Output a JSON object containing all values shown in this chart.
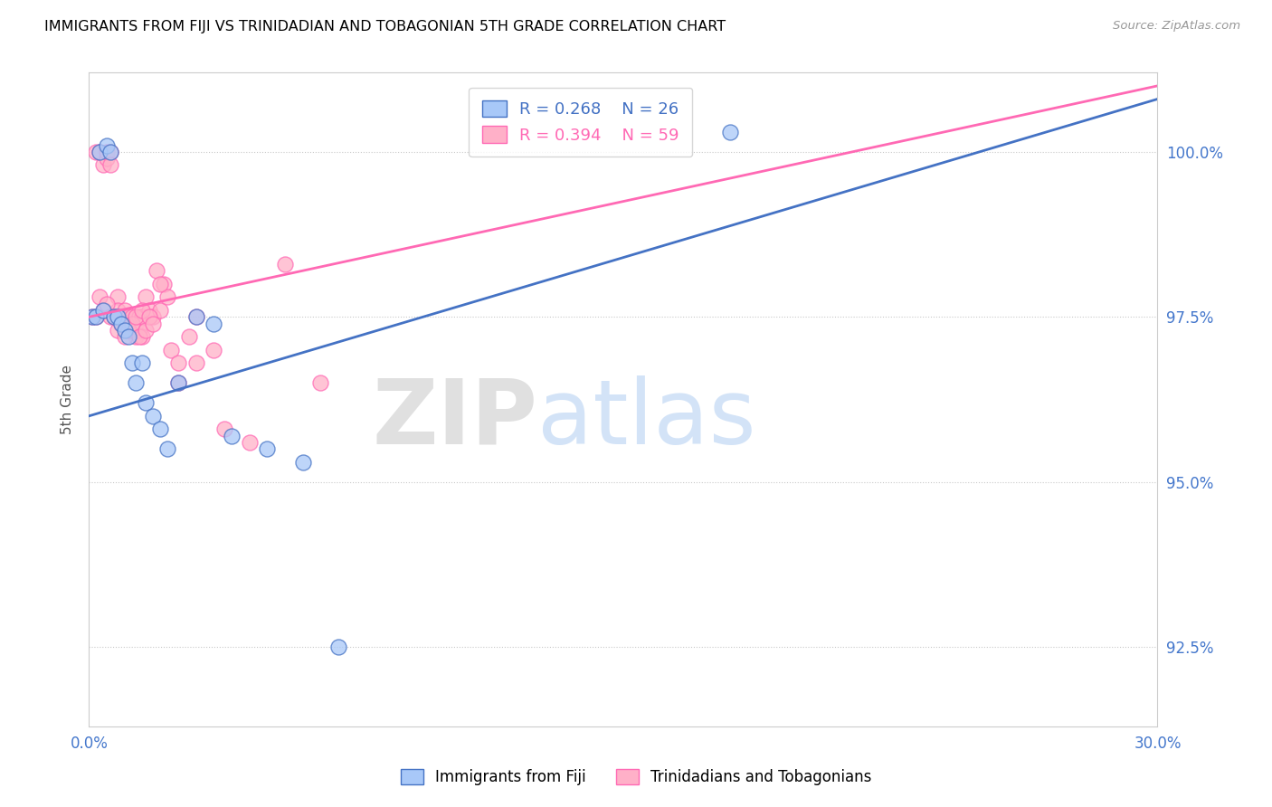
{
  "title": "IMMIGRANTS FROM FIJI VS TRINIDADIAN AND TOBAGONIAN 5TH GRADE CORRELATION CHART",
  "source": "Source: ZipAtlas.com",
  "ylabel": "5th Grade",
  "ylabel_right_ticks": [
    100.0,
    97.5,
    95.0,
    92.5
  ],
  "ylabel_right_labels": [
    "100.0%",
    "97.5%",
    "95.0%",
    "92.5%"
  ],
  "xmin": 0.0,
  "xmax": 30.0,
  "ymin": 91.3,
  "ymax": 101.2,
  "fiji_R": 0.268,
  "fiji_N": 26,
  "tt_R": 0.394,
  "tt_N": 59,
  "fiji_color": "#A8C8F8",
  "tt_color": "#FFB0C8",
  "fiji_line_color": "#4472C4",
  "tt_line_color": "#FF69B4",
  "fiji_label": "Immigrants from Fiji",
  "tt_label": "Trinidadians and Tobagonians",
  "watermark_zip": "ZIP",
  "watermark_atlas": "atlas",
  "fiji_x": [
    0.1,
    0.2,
    0.3,
    0.4,
    0.5,
    0.6,
    0.7,
    0.8,
    0.9,
    1.0,
    1.1,
    1.2,
    1.3,
    1.5,
    1.6,
    1.8,
    2.0,
    2.2,
    2.5,
    3.0,
    3.5,
    4.0,
    5.0,
    6.0,
    7.0,
    18.0
  ],
  "fiji_y": [
    97.5,
    97.5,
    100.0,
    97.6,
    100.1,
    100.0,
    97.5,
    97.5,
    97.4,
    97.3,
    97.2,
    96.8,
    96.5,
    96.8,
    96.2,
    96.0,
    95.8,
    95.5,
    96.5,
    97.5,
    97.4,
    95.7,
    95.5,
    95.3,
    92.5,
    100.3
  ],
  "tt_x": [
    0.1,
    0.2,
    0.3,
    0.4,
    0.5,
    0.5,
    0.6,
    0.6,
    0.7,
    0.8,
    0.8,
    0.9,
    1.0,
    1.0,
    1.1,
    1.2,
    1.2,
    1.3,
    1.3,
    1.4,
    1.4,
    1.5,
    1.5,
    1.6,
    1.7,
    1.8,
    1.9,
    2.0,
    2.1,
    2.2,
    2.3,
    2.5,
    2.8,
    3.0,
    3.5,
    3.8,
    4.5,
    5.5,
    6.5,
    0.2,
    0.3,
    0.4,
    0.5,
    0.6,
    0.7,
    0.8,
    0.9,
    1.0,
    1.1,
    1.2,
    1.3,
    1.4,
    1.5,
    1.6,
    1.7,
    1.8,
    2.0,
    2.5,
    3.0
  ],
  "tt_y": [
    97.5,
    100.0,
    100.0,
    99.8,
    99.9,
    100.0,
    100.0,
    99.8,
    97.5,
    97.8,
    97.6,
    97.5,
    97.4,
    97.6,
    97.5,
    97.3,
    97.5,
    97.4,
    97.2,
    97.3,
    97.5,
    97.5,
    97.2,
    97.8,
    97.6,
    97.5,
    98.2,
    97.6,
    98.0,
    97.8,
    97.0,
    96.5,
    97.2,
    96.8,
    97.0,
    95.8,
    95.6,
    98.3,
    96.5,
    97.5,
    97.8,
    97.6,
    97.7,
    97.5,
    97.5,
    97.3,
    97.4,
    97.2,
    97.3,
    97.4,
    97.5,
    97.2,
    97.6,
    97.3,
    97.5,
    97.4,
    98.0,
    96.8,
    97.5
  ],
  "fiji_line_x0": 0.0,
  "fiji_line_y0": 96.0,
  "fiji_line_x1": 30.0,
  "fiji_line_y1": 100.8,
  "tt_line_x0": 0.0,
  "tt_line_y0": 97.5,
  "tt_line_x1": 30.0,
  "tt_line_y1": 101.0
}
